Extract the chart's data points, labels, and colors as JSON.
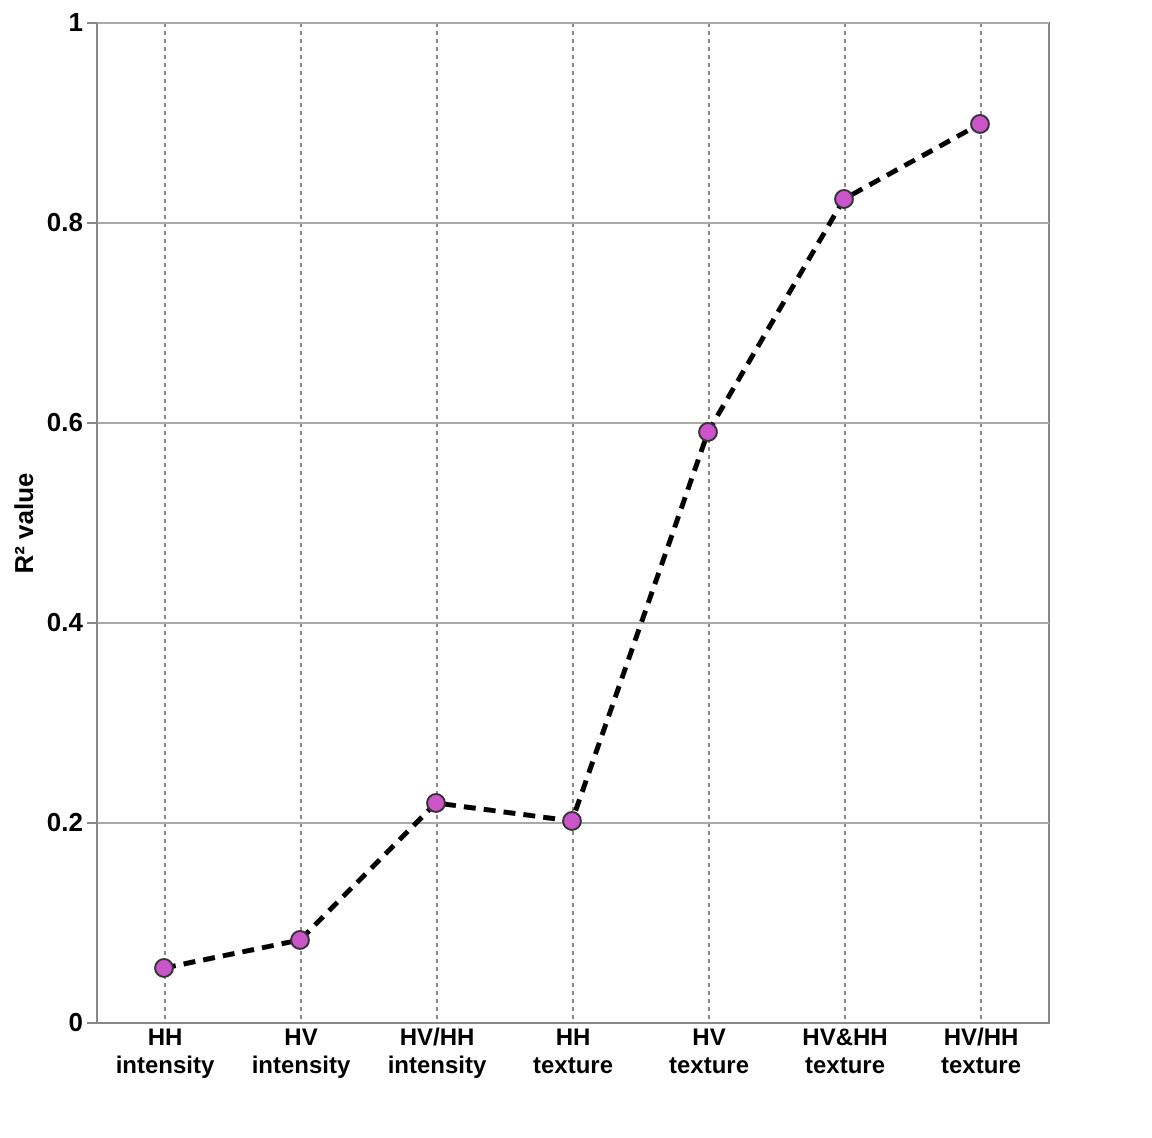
{
  "chart_data": {
    "type": "line",
    "ylabel": "R² value",
    "categories": [
      "HH intensity",
      "HV intensity",
      "HV/HH intensity",
      "HH texture",
      "HV texture",
      "HV&HH texture",
      "HV/HH texture"
    ],
    "series": [
      {
        "color": "#000000",
        "values": [
          0.054,
          0.082,
          0.219,
          0.201,
          0.59,
          0.823,
          0.898
        ]
      }
    ],
    "ylim": [
      0,
      1
    ],
    "yticks": [
      0,
      0.2,
      0.4,
      0.6,
      0.8,
      1
    ],
    "grid": true,
    "marker": "circle",
    "line_style": "dashed"
  }
}
